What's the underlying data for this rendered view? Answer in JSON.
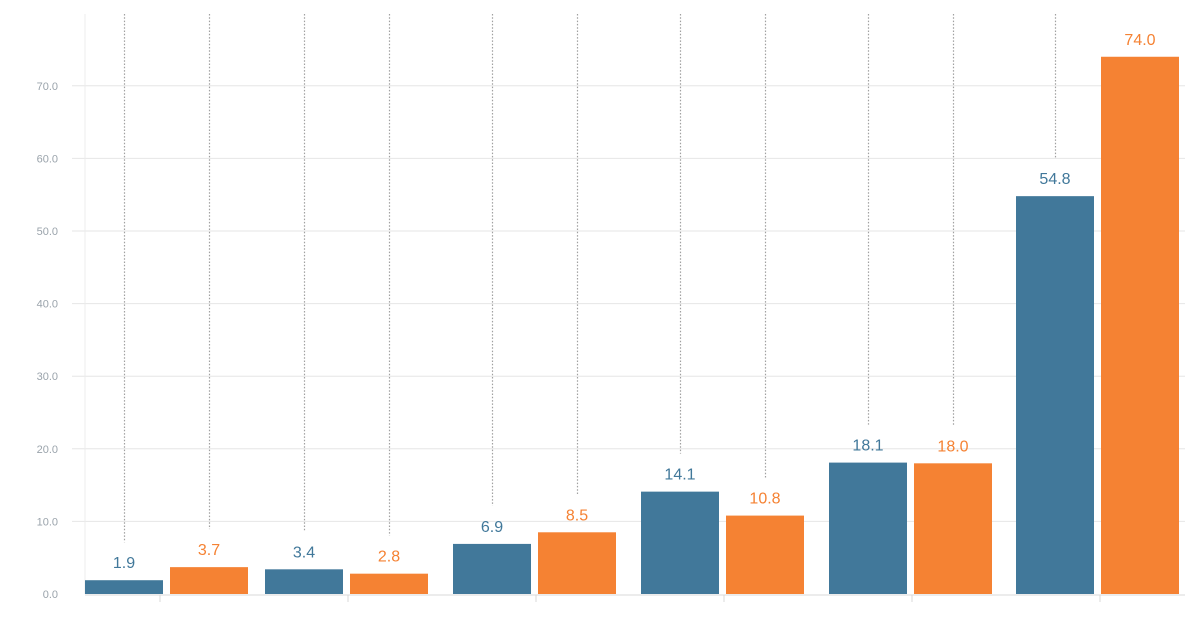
{
  "chart_data": {
    "type": "bar",
    "title": "",
    "xlabel": "",
    "ylabel": "",
    "ylim": [
      0,
      75
    ],
    "yticks": [
      0,
      10,
      20,
      30,
      40,
      50,
      60,
      70
    ],
    "ytick_labels": [
      "0.0",
      "10.0",
      "20.0",
      "30.0",
      "40.0",
      "50.0",
      "60.0",
      "70.0"
    ],
    "grid": true,
    "legend": "none",
    "categories": [
      "",
      "",
      "",
      "",
      "",
      ""
    ],
    "series": [
      {
        "color": "#41789a",
        "values": [
          1.9,
          3.4,
          6.9,
          14.1,
          18.1,
          54.8
        ],
        "labels": [
          "1.9",
          "3.4",
          "6.9",
          "14.1",
          "18.1",
          "54.8"
        ]
      },
      {
        "color": "#f58233",
        "values": [
          3.7,
          2.8,
          8.5,
          10.8,
          18.0,
          74.0
        ],
        "labels": [
          "3.7",
          "2.8",
          "8.5",
          "10.8",
          "18.0",
          "74.0"
        ]
      }
    ],
    "gridline_color": "#e6e6e6",
    "dotted_line_color": "#a0a0a0"
  }
}
